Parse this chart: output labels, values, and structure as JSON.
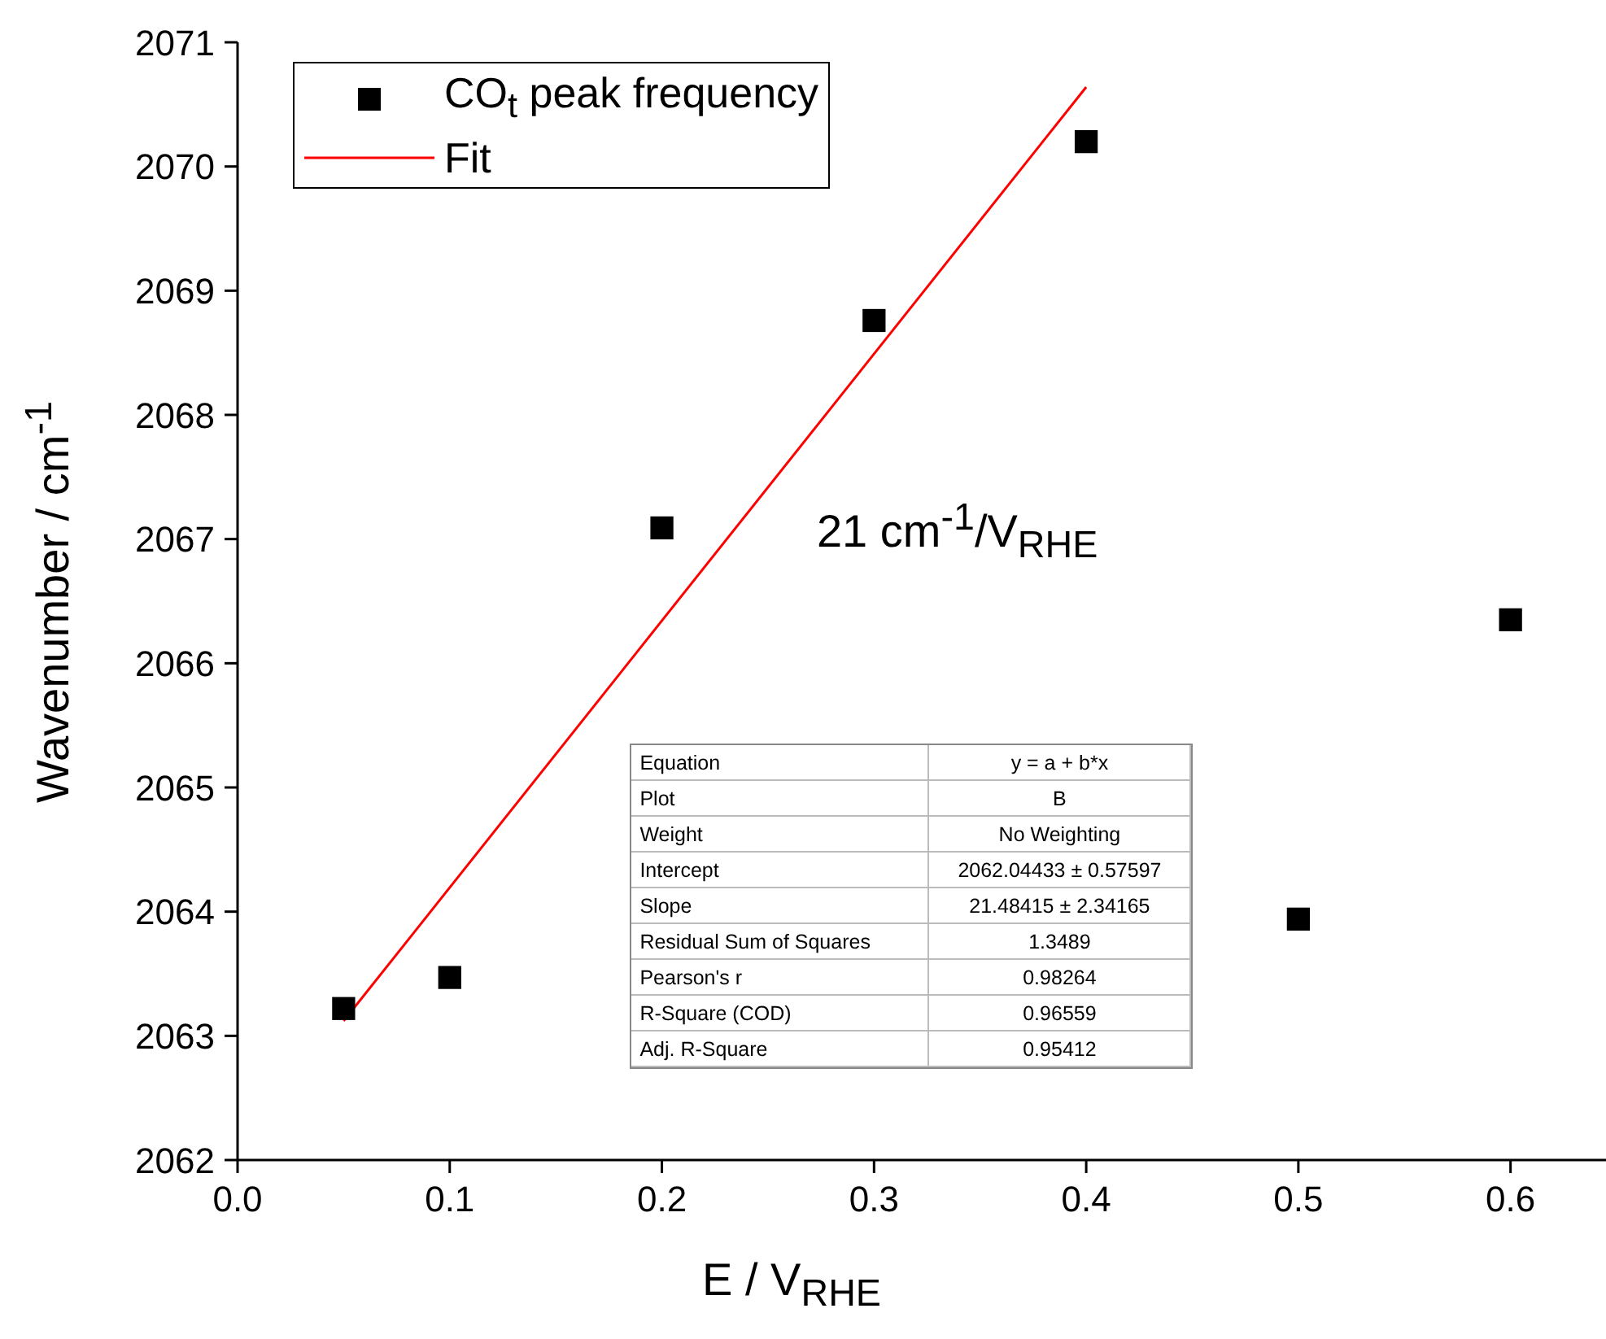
{
  "chart_data": {
    "type": "scatter",
    "xlabel": "E / V$_{RHE}$",
    "ylabel": "Wavenumber / cm$^{-1}$",
    "xlim": [
      0,
      0.645
    ],
    "xticks": [
      {
        "value": 0,
        "label": "0.0"
      },
      0.1,
      0.2,
      0.3,
      0.4,
      0.5,
      0.6
    ],
    "ylim": [
      2062,
      2071
    ],
    "yticks": [
      2062,
      2063,
      2064,
      2065,
      2066,
      2067,
      2068,
      2069,
      2070,
      2071
    ],
    "grid": false,
    "legend": "top left",
    "series": [
      {
        "name": "CO$_{t}$ peak frequency",
        "marker": "square",
        "color": "#000000",
        "x": [
          0.05,
          0.1,
          0.2,
          0.3,
          0.4,
          0.5,
          0.6
        ],
        "values": [
          2063.22,
          2063.47,
          2067.09,
          2068.76,
          2070.2,
          2063.94,
          2066.35
        ]
      },
      {
        "name": "Fit",
        "type": "line",
        "marker": "none",
        "color": "#ff0000",
        "x": [
          0.05,
          0.4
        ],
        "values": [
          2063.12,
          2070.64
        ]
      }
    ],
    "annotations": [
      "21 cm$^{-1}$/V$_{RHE}$",
      "Equation",
      "y = a + b*x",
      "Plot",
      "B",
      "Weight",
      "No Weighting",
      "Intercept",
      "2062.04433 ± 0.57597",
      "Slope",
      "21.48415 ± 2.34165",
      "Residual Sum of Squares",
      "1.3489",
      "Pearson's r",
      "0.98264",
      "R-Square (COD)",
      "0.96559",
      "Adj. R-Square",
      "0.95412"
    ]
  }
}
